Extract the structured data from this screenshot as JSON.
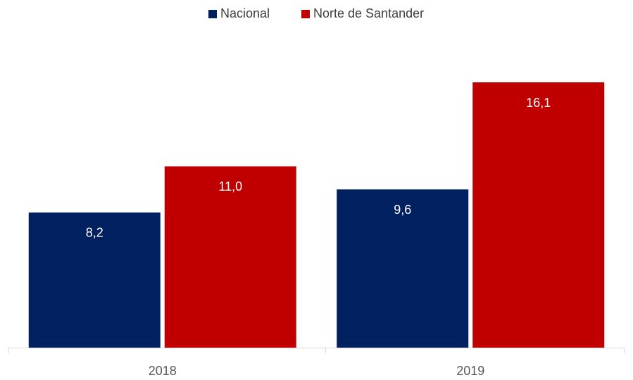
{
  "chart_data": {
    "type": "bar",
    "categories": [
      "2018",
      "2019"
    ],
    "series": [
      {
        "name": "Nacional",
        "color": "#002060",
        "values": [
          8.2,
          9.6
        ],
        "value_labels": [
          "8,2",
          "9,6"
        ]
      },
      {
        "name": "Norte de Santander",
        "color": "#C00000",
        "values": [
          11.0,
          16.1
        ],
        "value_labels": [
          "11,0",
          "16,1"
        ]
      }
    ],
    "legend": "top"
  }
}
